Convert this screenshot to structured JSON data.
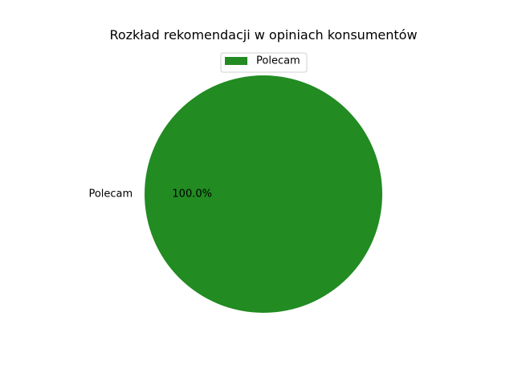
{
  "chart_data": {
    "type": "pie",
    "title": "Rozkład rekomendacji w opiniach konsumentów",
    "categories": [
      "Polecam"
    ],
    "values": [
      100.0
    ],
    "percent_labels": [
      "100.0%"
    ],
    "colors": [
      "#228b22"
    ],
    "legend": {
      "entries": [
        "Polecam"
      ],
      "placement": "top-center"
    }
  }
}
